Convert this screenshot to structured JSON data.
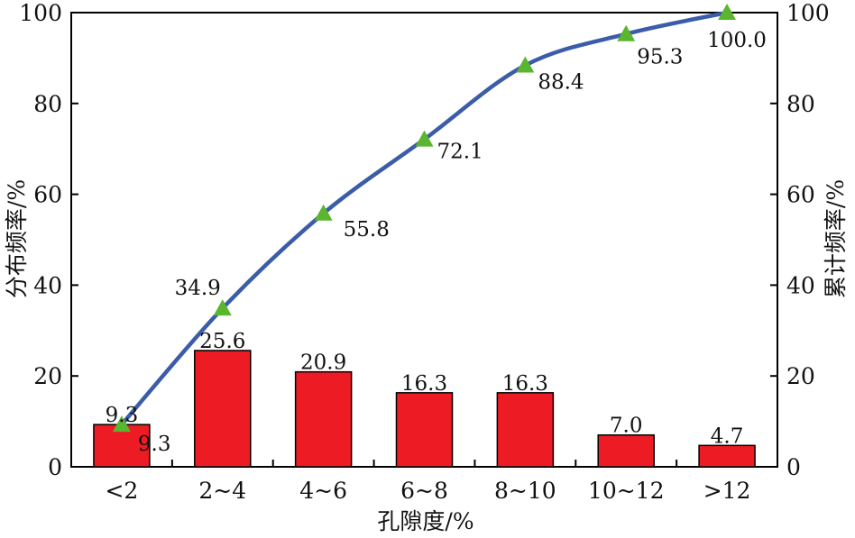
{
  "chart_data": {
    "type": "bar",
    "categories": [
      "<2",
      "2~4",
      "4~6",
      "6~8",
      "8~10",
      "10~12",
      ">12"
    ],
    "series": [
      {
        "type": "bar",
        "axis": "left",
        "values": [
          9.3,
          25.6,
          20.9,
          16.3,
          16.3,
          7.0,
          4.7
        ],
        "labels": [
          "9.3",
          "25.6",
          "20.9",
          "16.3",
          "16.3",
          "7.0",
          "4.7"
        ],
        "color": "#ed1c24"
      },
      {
        "type": "line",
        "axis": "right",
        "values": [
          9.3,
          34.9,
          55.8,
          72.1,
          88.4,
          95.3,
          100.0
        ],
        "labels": [
          "9.3",
          "34.9",
          "55.8",
          "72.1",
          "88.4",
          "95.3",
          "100.0"
        ],
        "color": "#3b5ca8",
        "marker": "triangle",
        "marker_color": "#5ab52f"
      }
    ],
    "xlabel": "孔隙度/%",
    "ylabel": "分布频率/%",
    "ylabel_right": "累计频率/%",
    "ylim": [
      0,
      100
    ],
    "ylim_right": [
      0,
      100
    ],
    "yticks": [
      "0",
      "20",
      "40",
      "60",
      "80",
      "100"
    ],
    "yticks_right": [
      "0",
      "20",
      "40",
      "60",
      "80",
      "100"
    ],
    "grid": false,
    "legend": "none"
  }
}
